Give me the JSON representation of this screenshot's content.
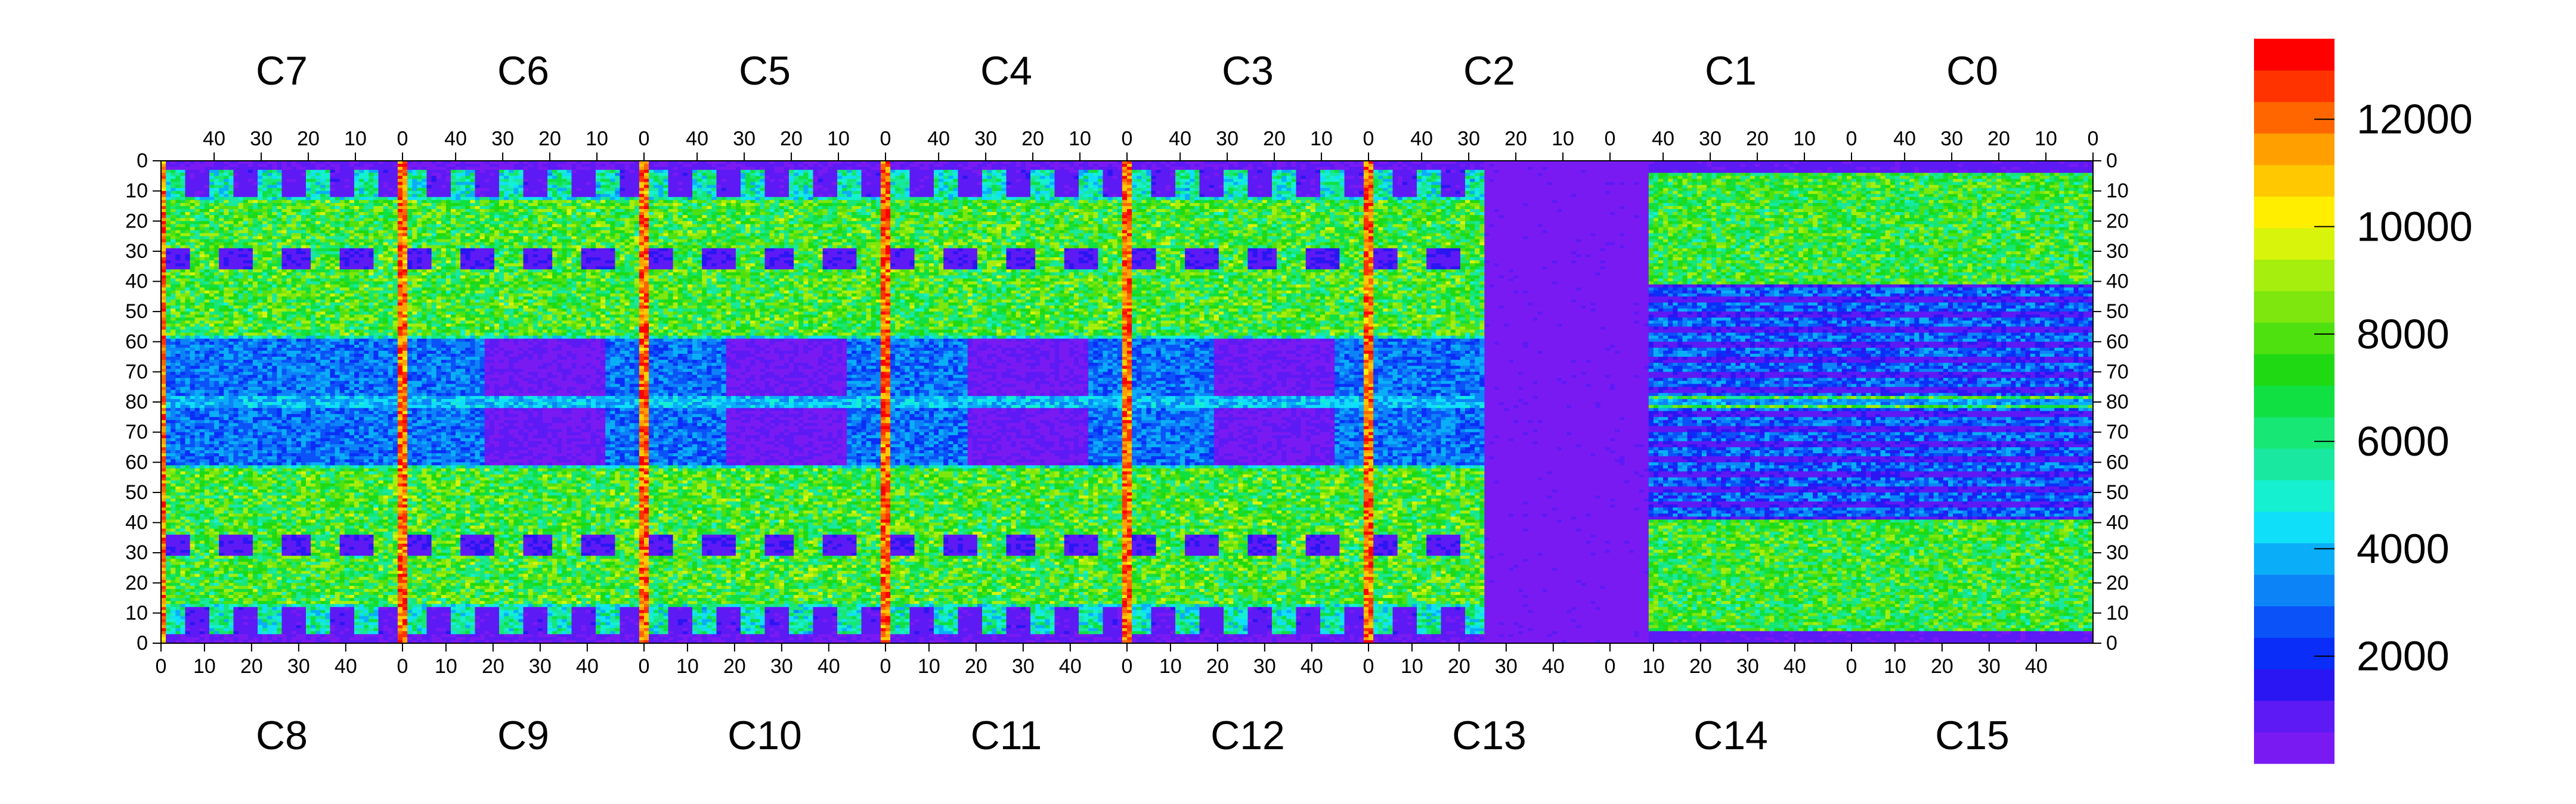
{
  "chart_data": {
    "type": "heatmap",
    "title": "",
    "xlabel": "",
    "ylabel": "",
    "top_chip_labels": [
      "C7",
      "C6",
      "C5",
      "C4",
      "C3",
      "C2",
      "C1",
      "C0"
    ],
    "bottom_chip_labels": [
      "C8",
      "C9",
      "C10",
      "C11",
      "C12",
      "C13",
      "C14",
      "C15"
    ],
    "top_x_ticks": [
      "40",
      "30",
      "20",
      "10",
      "0"
    ],
    "bottom_x_ticks": [
      "0",
      "10",
      "20",
      "30",
      "40"
    ],
    "y_ticks": [
      "0",
      "10",
      "20",
      "30",
      "40",
      "50",
      "60",
      "70",
      "80",
      "70",
      "60",
      "50",
      "40",
      "30",
      "20",
      "10",
      "0"
    ],
    "colorbar": {
      "min": 0,
      "max": 13500,
      "tick_values": [
        2000,
        4000,
        6000,
        8000,
        10000,
        12000
      ],
      "tick_labels": [
        "2000",
        "4000",
        "6000",
        "8000",
        "10000",
        "12000"
      ],
      "colors": [
        "#7a1af2",
        "#5d1af5",
        "#2a16f3",
        "#0a2ef7",
        "#0b52f8",
        "#0c84f8",
        "#0aaef8",
        "#10dffa",
        "#15f0d0",
        "#18e8a0",
        "#17e774",
        "#10e042",
        "#1fda12",
        "#4fe010",
        "#7ee70e",
        "#a6ee0d",
        "#d8f40a",
        "#ffee00",
        "#ffc800",
        "#ffa000",
        "#ff6600",
        "#ff3300",
        "#ff0000"
      ]
    },
    "grid": false,
    "legend": "colorbar right"
  }
}
